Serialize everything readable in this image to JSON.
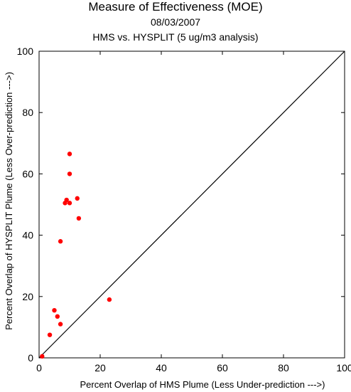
{
  "chart_data": {
    "type": "scatter",
    "title": "Measure of Effectiveness (MOE)",
    "subtitle_date": "08/03/2007",
    "subtitle_analysis": "HMS vs. HYSPLIT  (5 ug/m3 analysis)",
    "xlabel": "Percent Overlap of HMS Plume (Less Under-prediction --->)",
    "ylabel": "Percent Overlap of HYSPLIT Plume (Less Over-prediction --->)",
    "xlim": [
      0,
      100
    ],
    "ylim": [
      0,
      100
    ],
    "xticks": [
      "0",
      "20",
      "40",
      "60",
      "80",
      "100"
    ],
    "yticks": [
      "0",
      "20",
      "40",
      "60",
      "80",
      "100"
    ],
    "tick_values": [
      0,
      20,
      40,
      60,
      80,
      100
    ],
    "reference_line": "y = x",
    "point_color": "#ff0000",
    "points": [
      {
        "x": 1.0,
        "y": 0.5
      },
      {
        "x": 3.5,
        "y": 7.5
      },
      {
        "x": 5.0,
        "y": 15.5
      },
      {
        "x": 6.0,
        "y": 13.5
      },
      {
        "x": 7.0,
        "y": 11.0
      },
      {
        "x": 7.0,
        "y": 38.0
      },
      {
        "x": 8.5,
        "y": 50.5
      },
      {
        "x": 9.0,
        "y": 51.5
      },
      {
        "x": 10.0,
        "y": 66.5
      },
      {
        "x": 10.0,
        "y": 60.0
      },
      {
        "x": 10.0,
        "y": 50.5
      },
      {
        "x": 12.5,
        "y": 52.0
      },
      {
        "x": 13.0,
        "y": 45.5
      },
      {
        "x": 23.0,
        "y": 19.0
      }
    ]
  }
}
